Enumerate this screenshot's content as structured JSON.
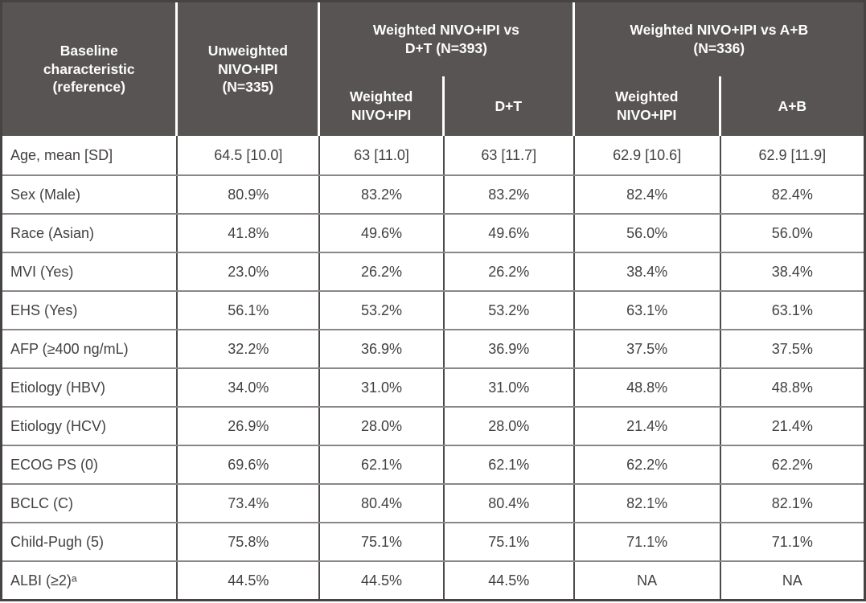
{
  "table": {
    "header": {
      "baseline_label": "Baseline\ncharacteristic\n(reference)",
      "unweighted": "Unweighted\nNIVO+IPI\n(N=335)",
      "group_dt": "Weighted NIVO+IPI vs\nD+T (N=393)",
      "group_ab": "Weighted NIVO+IPI vs A+B\n(N=336)",
      "sub_weighted_dt": "Weighted\nNIVO+IPI",
      "sub_dt": "D+T",
      "sub_weighted_ab": "Weighted\nNIVO+IPI",
      "sub_ab": "A+B"
    },
    "rows": [
      {
        "label": "Age, mean [SD]",
        "values": [
          "64.5 [10.0]",
          "63 [11.0]",
          "63 [11.7]",
          "62.9 [10.6]",
          "62.9 [11.9]"
        ]
      },
      {
        "label": "Sex (Male)",
        "values": [
          "80.9%",
          "83.2%",
          "83.2%",
          "82.4%",
          "82.4%"
        ]
      },
      {
        "label": "Race (Asian)",
        "values": [
          "41.8%",
          "49.6%",
          "49.6%",
          "56.0%",
          "56.0%"
        ]
      },
      {
        "label": "MVI (Yes)",
        "values": [
          "23.0%",
          "26.2%",
          "26.2%",
          "38.4%",
          "38.4%"
        ]
      },
      {
        "label": "EHS (Yes)",
        "values": [
          "56.1%",
          "53.2%",
          "53.2%",
          "63.1%",
          "63.1%"
        ]
      },
      {
        "label": "AFP (≥400 ng/mL)",
        "values": [
          "32.2%",
          "36.9%",
          "36.9%",
          "37.5%",
          "37.5%"
        ]
      },
      {
        "label": "Etiology (HBV)",
        "values": [
          "34.0%",
          "31.0%",
          "31.0%",
          "48.8%",
          "48.8%"
        ]
      },
      {
        "label": "Etiology (HCV)",
        "values": [
          "26.9%",
          "28.0%",
          "28.0%",
          "21.4%",
          "21.4%"
        ]
      },
      {
        "label": "ECOG PS (0)",
        "values": [
          "69.6%",
          "62.1%",
          "62.1%",
          "62.2%",
          "62.2%"
        ]
      },
      {
        "label": "BCLC (C)",
        "values": [
          "73.4%",
          "80.4%",
          "80.4%",
          "82.1%",
          "82.1%"
        ]
      },
      {
        "label": "Child-Pugh (5)",
        "values": [
          "75.8%",
          "75.1%",
          "75.1%",
          "71.1%",
          "71.1%"
        ]
      },
      {
        "label": "ALBI (≥2)ᵃ",
        "values": [
          "44.5%",
          "44.5%",
          "44.5%",
          "NA",
          "NA"
        ]
      }
    ]
  },
  "colors": {
    "header_bg": "#585454",
    "header_text": "#fdfdfd",
    "body_text": "#444040",
    "h_line": "#8b8787",
    "v_line": "#4e4a4a",
    "outer": "#474343",
    "white_divider": "#ffffff"
  }
}
